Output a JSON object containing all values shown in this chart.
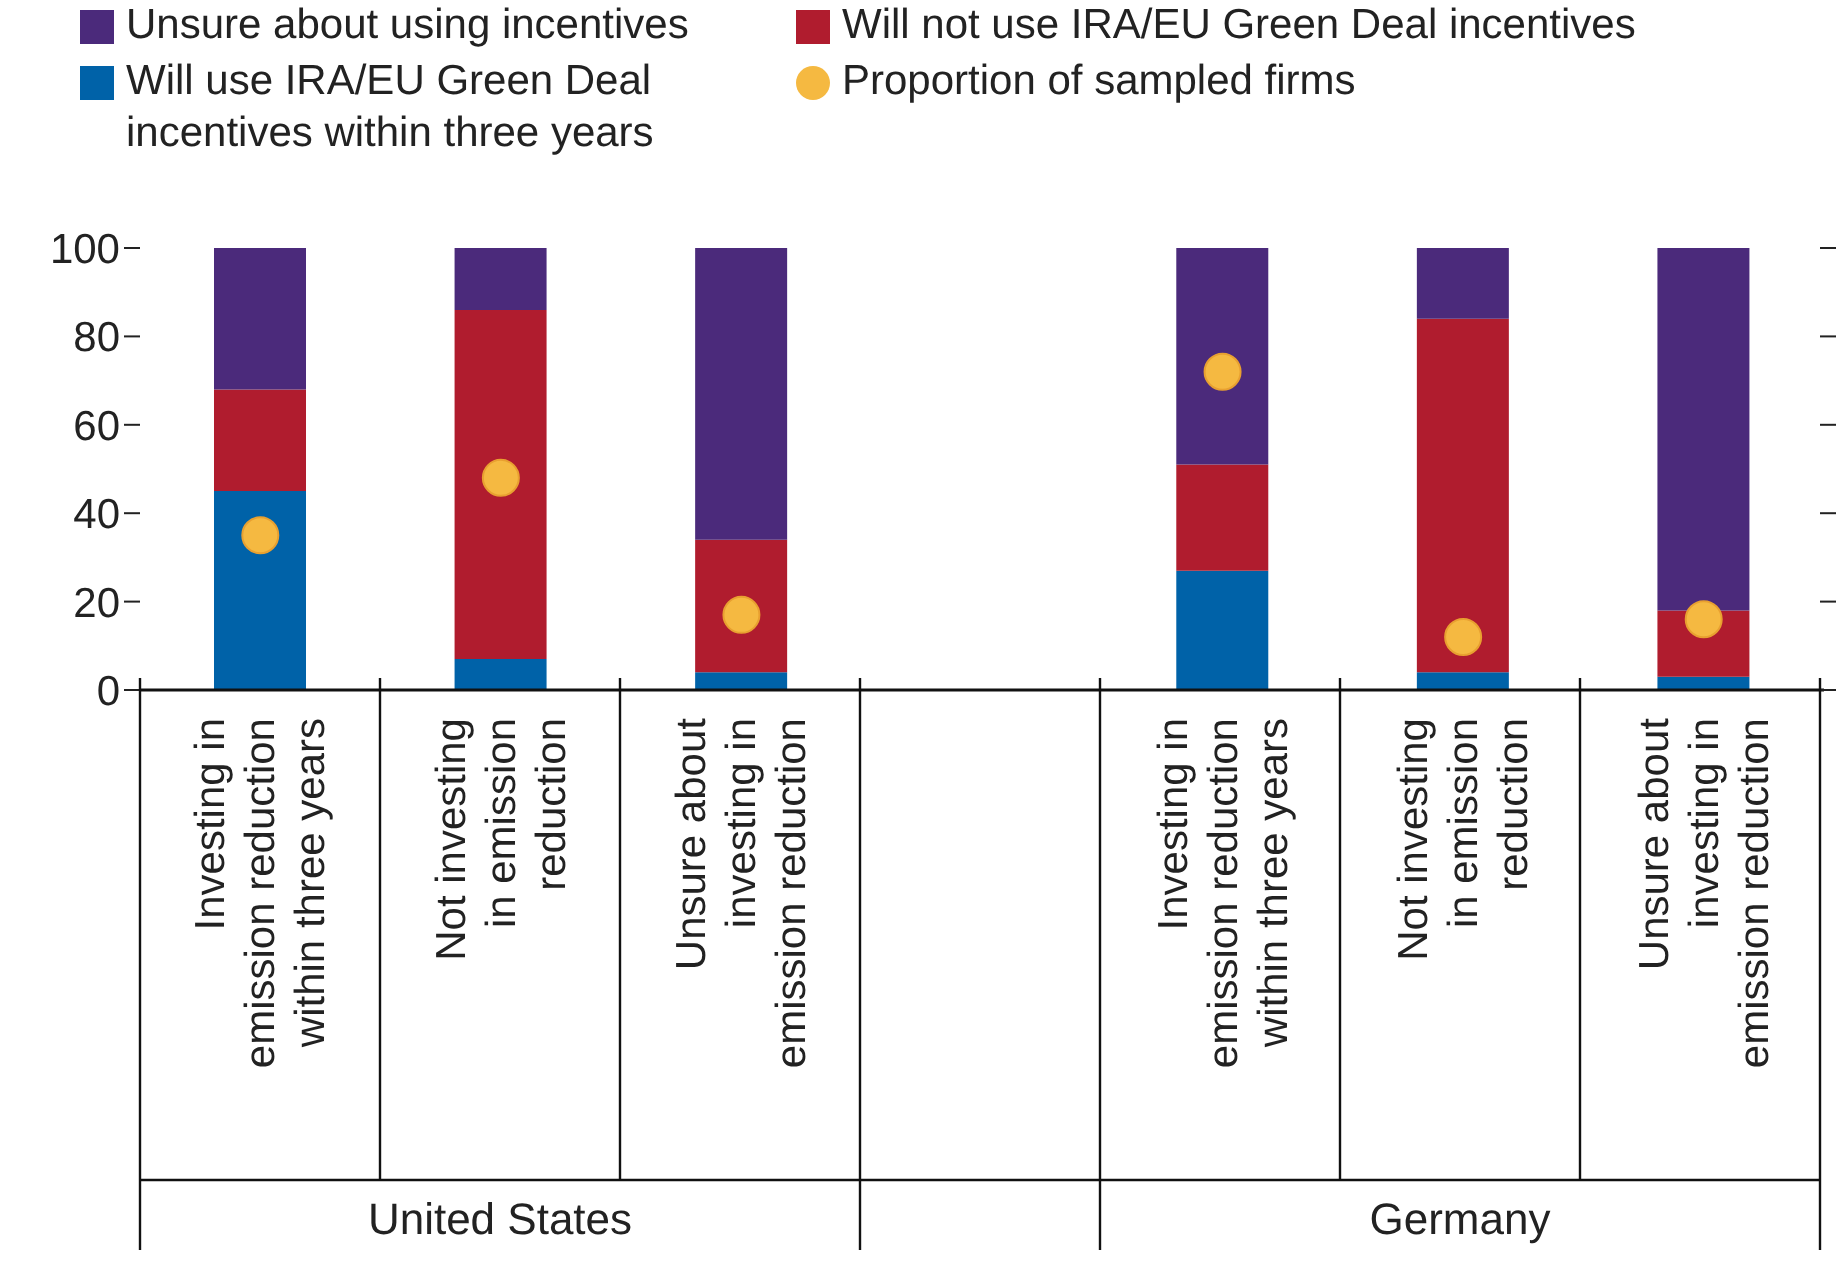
{
  "chart_data": {
    "type": "bar",
    "stacked": true,
    "legend": "top",
    "marker": "circle",
    "categories": [
      "Investing in\nemission reduction\nwithin three years",
      "Not investing\nin emission\nreduction",
      "Unsure about\ninvesting in\nemission reduction",
      null,
      "Investing in\nemission reduction\nwithin three years",
      "Not investing\nin emission\nreduction",
      "Unsure about\ninvesting in\nemission reduction"
    ],
    "series": [
      {
        "name": "Will use IRA/EU Green Deal incentives within three years",
        "color": "#0062a8",
        "values": [
          45,
          7,
          4,
          null,
          27,
          4,
          3
        ]
      },
      {
        "name": "Will not use IRA/EU Green Deal incentives",
        "color": "#b01c2e",
        "values": [
          23,
          79,
          30,
          null,
          24,
          80,
          15
        ]
      },
      {
        "name": "Unsure about using incentives",
        "color": "#4b2a7b",
        "values": [
          32,
          14,
          66,
          null,
          49,
          16,
          82
        ]
      },
      {
        "name": "Proportion of sampled firms",
        "type": "scatter",
        "color": "#f5b941",
        "values": [
          35,
          48,
          17,
          null,
          72,
          12,
          16
        ]
      }
    ],
    "ylim": [
      0,
      100
    ],
    "yticks": [
      0,
      20,
      40,
      60,
      80,
      100
    ],
    "annotations": [
      "United States",
      "Germany"
    ]
  }
}
